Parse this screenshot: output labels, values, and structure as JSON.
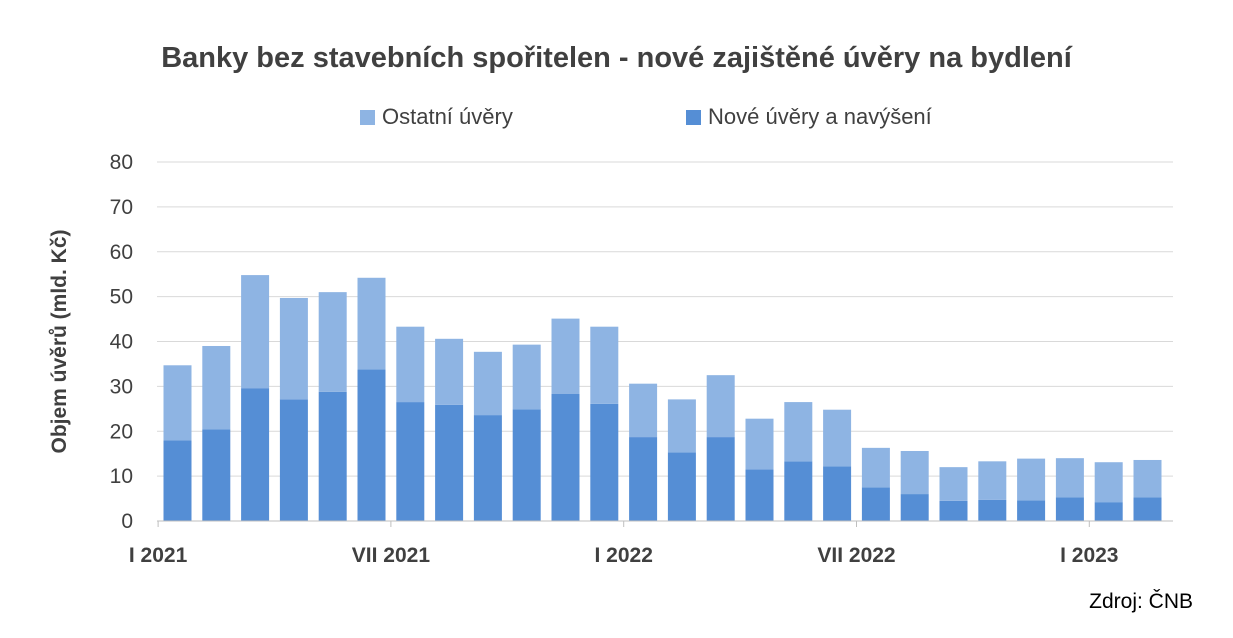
{
  "colors": {
    "ostatni": "#8EB4E3",
    "nove": "#558ED5",
    "grid": "#D9D9D9",
    "axis_text": "#404040"
  },
  "source_label": "Zdroj: ČNB",
  "chart_data": {
    "type": "bar",
    "stacked": true,
    "title": "Banky bez stavebních spořitelen - nové zajištěné úvěry na bydlení",
    "xlabel": "",
    "ylabel": "Objem úvěrů (mld. Kč)",
    "ylim": [
      0,
      80
    ],
    "yticks": [
      0,
      10,
      20,
      30,
      40,
      50,
      60,
      70,
      80
    ],
    "grid": true,
    "legend_position": "top",
    "x_tick_labels": [
      {
        "index": 0,
        "label": "I 2021"
      },
      {
        "index": 6,
        "label": "VII 2021"
      },
      {
        "index": 12,
        "label": "I 2022"
      },
      {
        "index": 18,
        "label": "VII 2022"
      },
      {
        "index": 24,
        "label": "I 2023"
      }
    ],
    "categories": [
      "I 2021",
      "II 2021",
      "III 2021",
      "IV 2021",
      "V 2021",
      "VI 2021",
      "VII 2021",
      "VIII 2021",
      "IX 2021",
      "X 2021",
      "XI 2021",
      "XII 2021",
      "I 2022",
      "II 2022",
      "III 2022",
      "IV 2022",
      "V 2022",
      "VI 2022",
      "VII 2022",
      "VIII 2022",
      "IX 2022",
      "X 2022",
      "XI 2022",
      "XII 2022",
      "I 2023",
      "II 2023"
    ],
    "series": [
      {
        "name": "Nové úvěry a navýšení",
        "color_key": "nove",
        "values": [
          18.0,
          20.4,
          29.6,
          27.1,
          28.8,
          33.8,
          26.5,
          25.9,
          23.6,
          24.9,
          28.3,
          26.1,
          18.7,
          15.3,
          18.7,
          11.5,
          13.3,
          12.2,
          7.5,
          6.0,
          4.5,
          4.7,
          4.6,
          5.3,
          4.2,
          5.3
        ]
      },
      {
        "name": "Ostatní úvěry",
        "color_key": "ostatni",
        "values": [
          16.7,
          18.6,
          25.2,
          22.6,
          22.2,
          20.4,
          16.8,
          14.7,
          14.1,
          14.4,
          16.8,
          17.2,
          11.9,
          11.8,
          13.8,
          11.3,
          13.2,
          12.6,
          8.8,
          9.6,
          7.5,
          8.6,
          9.3,
          8.7,
          8.9,
          8.3
        ]
      }
    ],
    "legend": [
      {
        "name": "Ostatní úvěry",
        "color_key": "ostatni"
      },
      {
        "name": "Nové úvěry a navýšení",
        "color_key": "nove"
      }
    ]
  }
}
